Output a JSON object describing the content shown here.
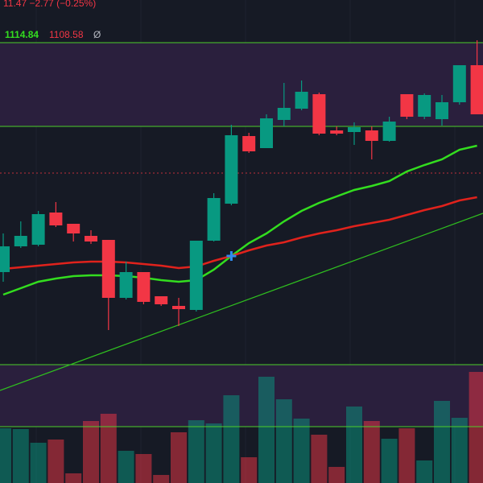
{
  "header": {
    "change_text": "11.47  −2.77 (−0.25%)",
    "up_value": "1114.84",
    "down_value": "1108.58",
    "symbol": "Ø"
  },
  "chart_data": {
    "type": "candlestick",
    "ylim": [
      1097.5,
      1120
    ],
    "up_color": "#089981",
    "down_color": "#f23645",
    "open": [
      1103.1,
      1104.7,
      1104.8,
      1106.8,
      1106.1,
      1105.35,
      1105.1,
      1101.5,
      1103.1,
      1101.6,
      1101,
      1100.75,
      1105.05,
      1107.35,
      1111.55,
      1110.8,
      1112.55,
      1113.25,
      1114.15,
      1111.9,
      1111.8,
      1111.9,
      1111.25,
      1114.15,
      1112.75,
      1112.6,
      1113.65,
      1115.95
    ],
    "high": [
      1105.5,
      1106.25,
      1106.9,
      1107.45,
      1106.1,
      1105.7,
      1105.1,
      1103.75,
      1103.1,
      1101.6,
      1101.5,
      1105.05,
      1108,
      1112.25,
      1111.75,
      1112.9,
      1114.85,
      1115,
      1114.25,
      1112.15,
      1112.4,
      1112.15,
      1112.75,
      1114.15,
      1114.2,
      1114.1,
      1115.95,
      1117.5
    ],
    "low": [
      1102.5,
      1104.6,
      1104.7,
      1105.9,
      1105,
      1104.85,
      1099.5,
      1101.4,
      1101.1,
      1101,
      1099.75,
      1100.65,
      1105,
      1107.25,
      1110.5,
      1110.8,
      1112.15,
      1113.15,
      1111.6,
      1111.6,
      1111,
      1110.1,
      1111.2,
      1112.6,
      1112.6,
      1112.2,
      1113.5,
      1112.9
    ],
    "close": [
      1104.7,
      1105.35,
      1106.7,
      1106,
      1105.5,
      1105,
      1101.5,
      1103.1,
      1101.25,
      1101.1,
      1100.8,
      1105.05,
      1107.7,
      1111.6,
      1110.6,
      1112.65,
      1113.3,
      1114.3,
      1111.7,
      1111.7,
      1112.1,
      1111.25,
      1112.45,
      1112.75,
      1114.1,
      1113.65,
      1115.95,
      1112.9
    ],
    "series": [
      {
        "color": "#33dd1f",
        "values": [
          1101.7,
          1102.1,
          1102.5,
          1102.7,
          1102.85,
          1102.9,
          1102.9,
          1102.85,
          1102.75,
          1102.6,
          1102.5,
          1102.6,
          1103.25,
          1104.1,
          1104.9,
          1105.5,
          1106.25,
          1106.9,
          1107.4,
          1107.8,
          1108.2,
          1108.45,
          1108.75,
          1109.35,
          1109.75,
          1110.1,
          1110.7,
          1110.95
        ]
      },
      {
        "color": "#e0221c",
        "values": [
          1103.3,
          1103.4,
          1103.5,
          1103.6,
          1103.7,
          1103.75,
          1103.75,
          1103.7,
          1103.6,
          1103.5,
          1103.35,
          1103.45,
          1103.8,
          1104.1,
          1104.45,
          1104.75,
          1104.95,
          1105.25,
          1105.5,
          1105.7,
          1105.95,
          1106.15,
          1106.35,
          1106.65,
          1106.95,
          1107.2,
          1107.55,
          1107.75
        ]
      }
    ],
    "trendline": {
      "color": "#2fbf1f",
      "values": [
        1095.75,
        1106.75
      ]
    },
    "levels": {
      "color": "#4ccf2a",
      "values": [
        1117.35,
        1112.15,
        1097.35
      ]
    },
    "last_price": {
      "color": "#c0303a",
      "value": 1109.25
    },
    "volume": {
      "ylim": [
        0,
        140
      ],
      "level": 70,
      "values": [
        68,
        67,
        50,
        54,
        12,
        77,
        86,
        40,
        36,
        10,
        63,
        78,
        74,
        109,
        32,
        132,
        104,
        80,
        60,
        20,
        95,
        77,
        55,
        68,
        28,
        102,
        81,
        138
      ]
    }
  }
}
